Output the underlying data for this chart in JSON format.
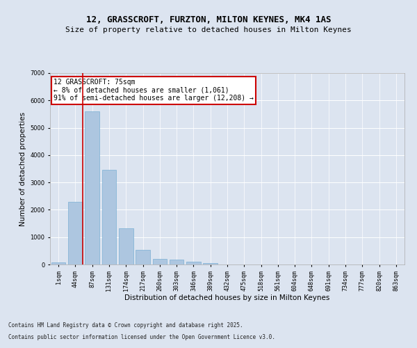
{
  "title_line1": "12, GRASSCROFT, FURZTON, MILTON KEYNES, MK4 1AS",
  "title_line2": "Size of property relative to detached houses in Milton Keynes",
  "xlabel": "Distribution of detached houses by size in Milton Keynes",
  "ylabel": "Number of detached properties",
  "categories": [
    "1sqm",
    "44sqm",
    "87sqm",
    "131sqm",
    "174sqm",
    "217sqm",
    "260sqm",
    "303sqm",
    "346sqm",
    "389sqm",
    "432sqm",
    "475sqm",
    "518sqm",
    "561sqm",
    "604sqm",
    "648sqm",
    "691sqm",
    "734sqm",
    "777sqm",
    "820sqm",
    "863sqm"
  ],
  "values": [
    80,
    2300,
    5600,
    3450,
    1320,
    530,
    210,
    185,
    90,
    50,
    0,
    0,
    0,
    0,
    0,
    0,
    0,
    0,
    0,
    0,
    0
  ],
  "bar_color": "#adc6e0",
  "bar_edge_color": "#7aafd4",
  "vline_x": 1.45,
  "vline_color": "#cc0000",
  "annotation_text": "12 GRASSCROFT: 75sqm\n← 8% of detached houses are smaller (1,061)\n91% of semi-detached houses are larger (12,208) →",
  "annotation_box_color": "#cc0000",
  "annotation_bg": "#ffffff",
  "ylim": [
    0,
    7000
  ],
  "yticks": [
    0,
    1000,
    2000,
    3000,
    4000,
    5000,
    6000,
    7000
  ],
  "bg_color": "#dce4f0",
  "plot_bg_color": "#dce4f0",
  "footer_line1": "Contains HM Land Registry data © Crown copyright and database right 2025.",
  "footer_line2": "Contains public sector information licensed under the Open Government Licence v3.0.",
  "title_fontsize": 9,
  "subtitle_fontsize": 8,
  "tick_fontsize": 6,
  "label_fontsize": 7.5,
  "annotation_fontsize": 7
}
